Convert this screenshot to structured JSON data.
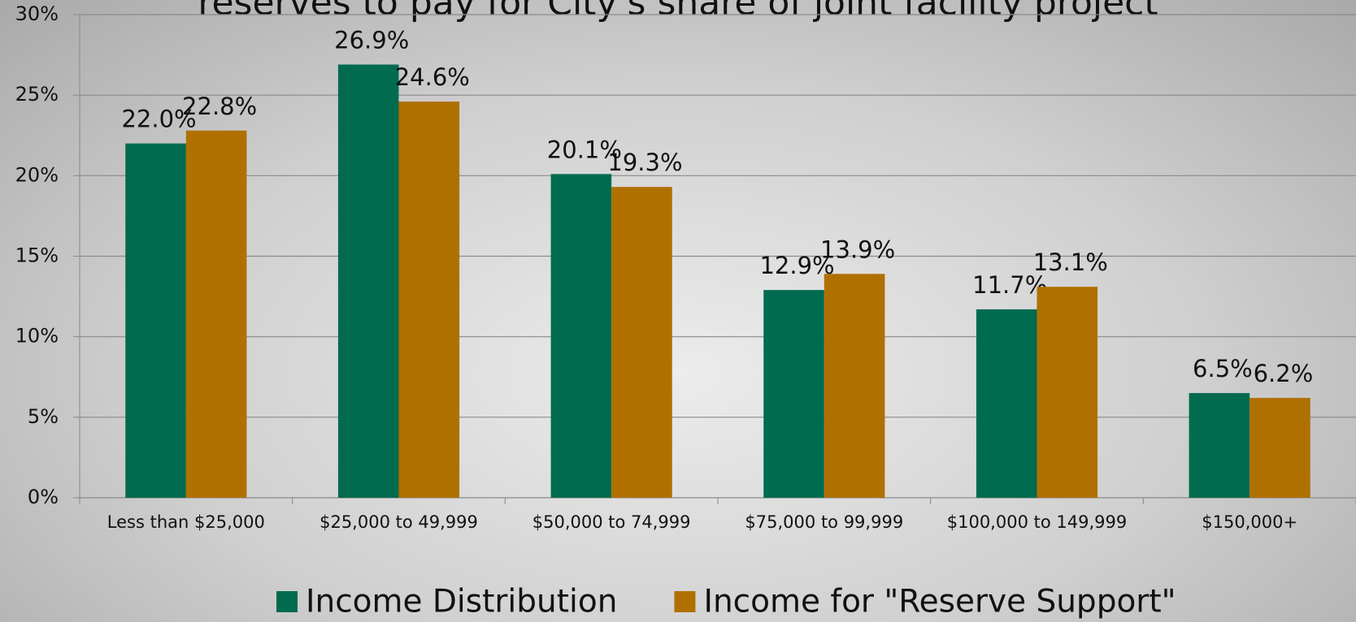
{
  "chart_data": {
    "type": "bar",
    "title": "reserves to pay for City's share of joint facility project",
    "categories": [
      "Less than $25,000",
      "$25,000 to 49,999",
      "$50,000 to 74,999",
      "$75,000 to 99,999",
      "$100,000 to 149,999",
      "$150,000+"
    ],
    "series": [
      {
        "name": "Income Distribution",
        "color": "#006b4f",
        "values": [
          22.0,
          26.9,
          20.1,
          12.9,
          11.7,
          6.5
        ],
        "value_labels": [
          "22.0%",
          "26.9%",
          "20.1%",
          "12.9%",
          "11.7%",
          "6.5%"
        ]
      },
      {
        "name": "Income for \"Reserve Support\"",
        "color": "#b07000",
        "values": [
          22.8,
          24.6,
          19.3,
          13.9,
          13.1,
          6.2
        ],
        "value_labels": [
          "22.8%",
          "24.6%",
          "19.3%",
          "13.9%",
          "13.1%",
          "6.2%"
        ]
      }
    ],
    "ylim": [
      0,
      30
    ],
    "yticks": [
      {
        "value": 0,
        "label": "0%"
      },
      {
        "value": 5,
        "label": "5%"
      },
      {
        "value": 10,
        "label": "10%"
      },
      {
        "value": 15,
        "label": "15%"
      },
      {
        "value": 20,
        "label": "20%"
      },
      {
        "value": 25,
        "label": "25%"
      },
      {
        "value": 30,
        "label": "30%"
      }
    ],
    "grid": true
  }
}
